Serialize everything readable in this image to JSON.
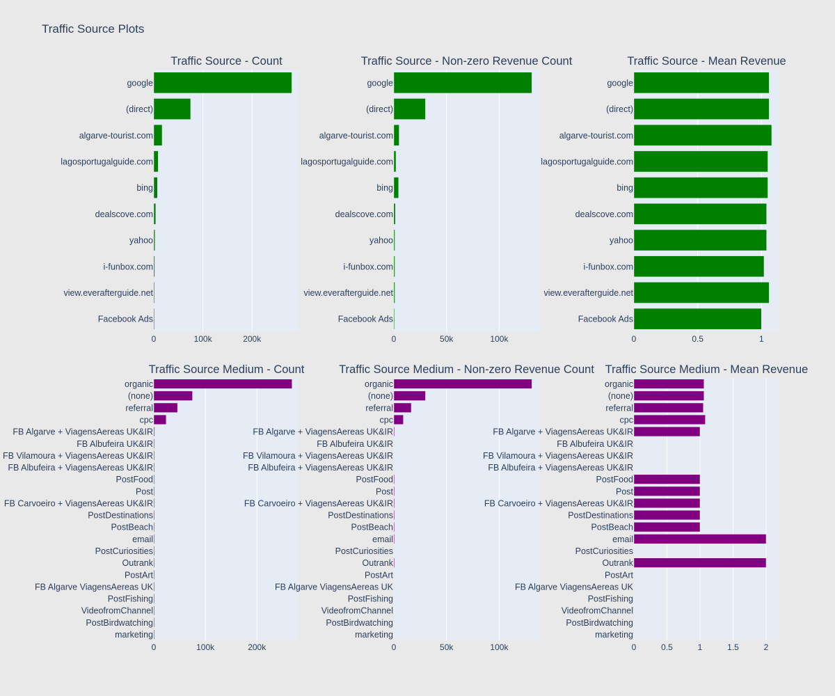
{
  "title": "Traffic Source Plots",
  "colors": {
    "source_bar": "#008000",
    "medium_bar": "#800080",
    "plot_bg": "#e5ecf6",
    "paper_bg": "#e9e9e9",
    "grid": "#ffffff",
    "text": "#2a3f5f"
  },
  "chart_data": [
    {
      "type": "bar",
      "orientation": "horizontal",
      "title": "Traffic Source - Count",
      "categories": [
        "google",
        "(direct)",
        "algarve-tourist.com",
        "lagosportugalguide.com",
        "bing",
        "dealscove.com",
        "yahoo",
        "i-funbox.com",
        "view.everafterguide.net",
        "Facebook Ads"
      ],
      "values": [
        281000,
        75000,
        17000,
        9000,
        7500,
        4000,
        2500,
        2000,
        1500,
        1000
      ],
      "xlim": [
        0,
        296000
      ],
      "xticks": [
        {
          "v": 0,
          "label": "0"
        },
        {
          "v": 100000,
          "label": "100k"
        },
        {
          "v": 200000,
          "label": "200k"
        }
      ],
      "color": "#008000"
    },
    {
      "type": "bar",
      "orientation": "horizontal",
      "title": "Traffic Source - Non-zero Revenue Count",
      "categories": [
        "google",
        "(direct)",
        "algarve-tourist.com",
        "lagosportugalguide.com",
        "bing",
        "dealscove.com",
        "yahoo",
        "i-funbox.com",
        "view.everafterguide.net",
        "Facebook Ads"
      ],
      "values": [
        131000,
        30000,
        5000,
        2000,
        4500,
        1500,
        1000,
        1000,
        1000,
        300
      ],
      "xlim": [
        0,
        138000
      ],
      "xticks": [
        {
          "v": 0,
          "label": "0"
        },
        {
          "v": 50000,
          "label": "50k"
        },
        {
          "v": 100000,
          "label": "100k"
        }
      ],
      "color": "#008000"
    },
    {
      "type": "bar",
      "orientation": "horizontal",
      "title": "Traffic Source - Mean Revenue",
      "categories": [
        "google",
        "(direct)",
        "algarve-tourist.com",
        "lagosportugalguide.com",
        "bing",
        "dealscove.com",
        "yahoo",
        "i-funbox.com",
        "view.everafterguide.net",
        "Facebook Ads"
      ],
      "values": [
        1.06,
        1.06,
        1.08,
        1.05,
        1.05,
        1.04,
        1.04,
        1.02,
        1.06,
        1.0
      ],
      "xlim": [
        0,
        1.14
      ],
      "xticks": [
        {
          "v": 0,
          "label": "0"
        },
        {
          "v": 0.5,
          "label": "0.5"
        },
        {
          "v": 1,
          "label": "1"
        }
      ],
      "color": "#008000"
    },
    {
      "type": "bar",
      "orientation": "horizontal",
      "title": "Traffic Source Medium - Count",
      "categories": [
        "organic",
        "(none)",
        "referral",
        "cpc",
        "FB Algarve + ViagensAereas UK&IR",
        "FB Albufeira UK&IR",
        "FB Vilamoura + ViagensAereas UK&IR",
        "FB Albufeira + ViagensAereas UK&IR",
        "PostFood",
        "Post",
        "FB Carvoeiro + ViagensAereas UK&IR",
        "PostDestinations",
        "PostBeach",
        "email",
        "PostCuriosities",
        "Outrank",
        "PostArt",
        "FB Algarve ViagensAereas UK",
        "PostFishing",
        "VideofromChannel",
        "PostBirdwatching",
        "marketing"
      ],
      "values": [
        268000,
        75000,
        46000,
        24000,
        1500,
        300,
        200,
        200,
        100,
        100,
        100,
        100,
        100,
        100,
        50,
        50,
        50,
        50,
        50,
        50,
        50,
        50
      ],
      "xlim": [
        0,
        282000
      ],
      "xticks": [
        {
          "v": 0,
          "label": "0"
        },
        {
          "v": 100000,
          "label": "100k"
        },
        {
          "v": 200000,
          "label": "200k"
        }
      ],
      "color": "#800080"
    },
    {
      "type": "bar",
      "orientation": "horizontal",
      "title": "Traffic Source Medium - Non-zero Revenue Count",
      "categories": [
        "organic",
        "(none)",
        "referral",
        "cpc",
        "FB Algarve + ViagensAereas UK&IR",
        "FB Albufeira UK&IR",
        "FB Vilamoura + ViagensAereas UK&IR",
        "FB Albufeira + ViagensAereas UK&IR",
        "PostFood",
        "Post",
        "FB Carvoeiro + ViagensAereas UK&IR",
        "PostDestinations",
        "PostBeach",
        "email",
        "PostCuriosities",
        "Outrank",
        "PostArt",
        "FB Algarve ViagensAereas UK",
        "PostFishing",
        "VideofromChannel",
        "PostBirdwatching",
        "marketing"
      ],
      "values": [
        131000,
        30000,
        16500,
        9000,
        500,
        0,
        0,
        0,
        100,
        100,
        100,
        100,
        100,
        50,
        0,
        50,
        0,
        0,
        0,
        0,
        0,
        0
      ],
      "xlim": [
        0,
        138000
      ],
      "xticks": [
        {
          "v": 0,
          "label": "0"
        },
        {
          "v": 50000,
          "label": "50k"
        },
        {
          "v": 100000,
          "label": "100k"
        }
      ],
      "color": "#800080"
    },
    {
      "type": "bar",
      "orientation": "horizontal",
      "title": "Traffic Source Medium - Mean Revenue",
      "categories": [
        "organic",
        "(none)",
        "referral",
        "cpc",
        "FB Algarve + ViagensAereas UK&IR",
        "FB Albufeira UK&IR",
        "FB Vilamoura + ViagensAereas UK&IR",
        "FB Albufeira + ViagensAereas UK&IR",
        "PostFood",
        "Post",
        "FB Carvoeiro + ViagensAereas UK&IR",
        "PostDestinations",
        "PostBeach",
        "email",
        "PostCuriosities",
        "Outrank",
        "PostArt",
        "FB Algarve ViagensAereas UK",
        "PostFishing",
        "VideofromChannel",
        "PostBirdwatching",
        "marketing"
      ],
      "values": [
        1.06,
        1.06,
        1.05,
        1.08,
        1.0,
        0,
        0,
        0,
        1.0,
        1.0,
        1.0,
        1.0,
        1.0,
        2.0,
        0,
        2.0,
        0,
        0,
        0,
        0,
        0,
        0
      ],
      "xlim": [
        0,
        2.2
      ],
      "xticks": [
        {
          "v": 0,
          "label": "0"
        },
        {
          "v": 0.5,
          "label": "0.5"
        },
        {
          "v": 1,
          "label": "1"
        },
        {
          "v": 1.5,
          "label": "1.5"
        },
        {
          "v": 2,
          "label": "2"
        }
      ],
      "color": "#800080"
    }
  ]
}
